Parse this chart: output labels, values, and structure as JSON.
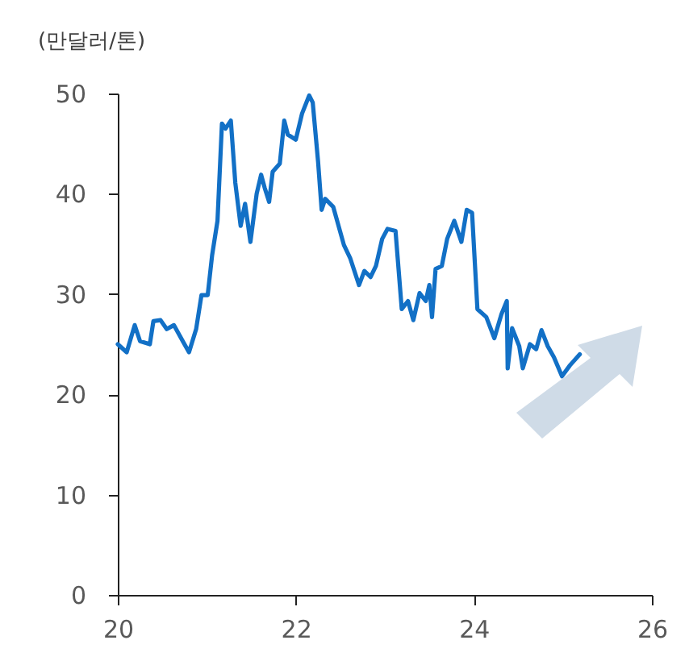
{
  "chart_data": {
    "type": "line",
    "ylabel": "(만달러/톤)",
    "xlim": [
      20,
      26
    ],
    "xticks": [
      20,
      22,
      24,
      26
    ],
    "ylim": [
      0,
      50
    ],
    "yticks": [
      0,
      10,
      20,
      30,
      40,
      50
    ],
    "grid": false,
    "series": [
      {
        "color": "#1270c6",
        "x": [
          20.0,
          20.1,
          20.19,
          20.25,
          20.36,
          20.4,
          20.48,
          20.55,
          20.63,
          20.73,
          20.8,
          20.88,
          20.94,
          21.01,
          21.06,
          21.12,
          21.17,
          21.21,
          21.27,
          21.32,
          21.38,
          21.43,
          21.49,
          21.56,
          21.61,
          21.65,
          21.7,
          21.74,
          21.82,
          21.87,
          21.91,
          22.0,
          22.07,
          22.15,
          22.19,
          22.25,
          22.29,
          22.33,
          22.42,
          22.54,
          22.61,
          22.71,
          22.77,
          22.84,
          22.9,
          22.97,
          23.03,
          23.12,
          23.19,
          23.26,
          23.32,
          23.39,
          23.46,
          23.5,
          23.53,
          23.57,
          23.64,
          23.7,
          23.78,
          23.86,
          23.92,
          23.98,
          24.04,
          24.14,
          24.23,
          24.31,
          24.37,
          24.38,
          24.43,
          24.51,
          24.55,
          24.63,
          24.7,
          24.76,
          24.83,
          24.9,
          24.99,
          25.08,
          25.19
        ],
        "values": [
          25.0,
          24.2,
          26.9,
          25.3,
          25.0,
          27.3,
          27.4,
          26.5,
          26.9,
          25.3,
          24.2,
          26.5,
          29.9,
          29.9,
          33.9,
          37.3,
          47.0,
          46.5,
          47.3,
          41.1,
          36.8,
          39.0,
          35.2,
          40.0,
          41.9,
          40.6,
          39.2,
          42.2,
          43.0,
          47.3,
          45.9,
          45.4,
          48.0,
          49.8,
          49.1,
          43.2,
          38.4,
          39.5,
          38.7,
          34.9,
          33.6,
          30.9,
          32.3,
          31.7,
          32.8,
          35.5,
          36.5,
          36.3,
          28.5,
          29.3,
          27.4,
          30.1,
          29.3,
          30.9,
          27.7,
          32.5,
          32.8,
          35.5,
          37.3,
          35.2,
          38.4,
          38.1,
          28.5,
          27.7,
          25.6,
          28.0,
          29.3,
          22.6,
          26.6,
          24.8,
          22.6,
          25.0,
          24.5,
          26.4,
          24.8,
          23.7,
          21.8,
          22.9,
          24.0
        ]
      }
    ]
  }
}
